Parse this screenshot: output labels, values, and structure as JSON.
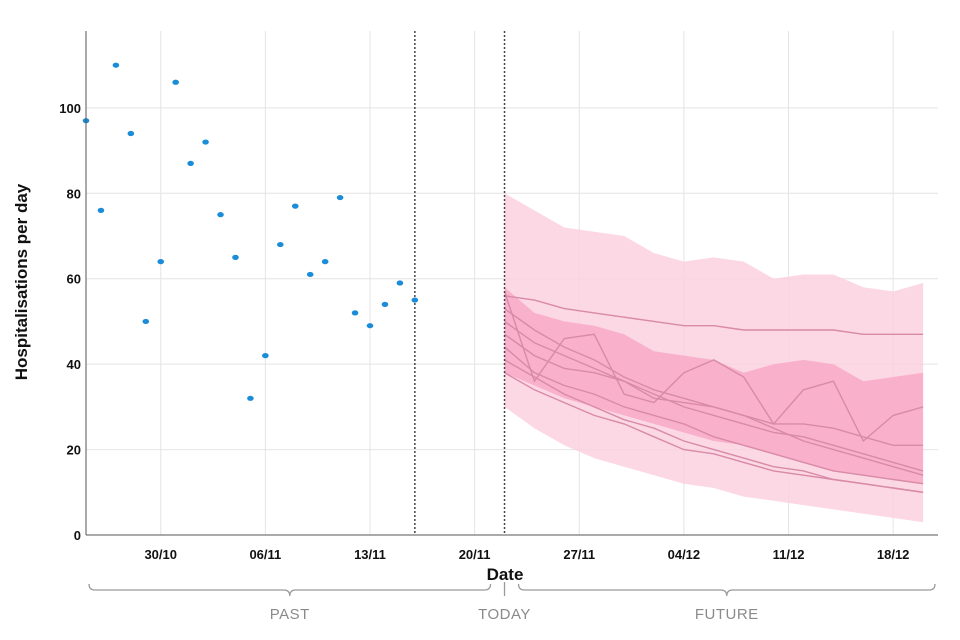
{
  "chart_data": {
    "type": "scatter",
    "xlabel": "Date",
    "ylabel": "Hospitalisations per day",
    "ylim": [
      0,
      118
    ],
    "xlim": [
      "2020-10-25",
      "2020-12-21"
    ],
    "grid": true,
    "x_ticks": [
      {
        "date": "2020-10-30",
        "label": "30/10"
      },
      {
        "date": "2020-11-06",
        "label": "06/11"
      },
      {
        "date": "2020-11-13",
        "label": "13/11"
      },
      {
        "date": "2020-11-20",
        "label": "20/11"
      },
      {
        "date": "2020-11-27",
        "label": "27/11"
      },
      {
        "date": "2020-12-04",
        "label": "04/12"
      },
      {
        "date": "2020-12-11",
        "label": "11/12"
      },
      {
        "date": "2020-12-18",
        "label": "18/12"
      }
    ],
    "y_ticks": [
      0,
      20,
      40,
      60,
      80,
      100
    ],
    "observed": {
      "x": [
        "2020-10-25",
        "2020-10-26",
        "2020-10-27",
        "2020-10-28",
        "2020-10-29",
        "2020-10-30",
        "2020-10-31",
        "2020-11-01",
        "2020-11-02",
        "2020-11-03",
        "2020-11-04",
        "2020-11-05",
        "2020-11-06",
        "2020-11-07",
        "2020-11-08",
        "2020-11-09",
        "2020-11-10",
        "2020-11-11",
        "2020-11-12",
        "2020-11-13",
        "2020-11-14",
        "2020-11-15",
        "2020-11-16"
      ],
      "y": [
        97,
        76,
        110,
        94,
        50,
        64,
        106,
        87,
        92,
        75,
        65,
        32,
        42,
        68,
        77,
        61,
        64,
        79,
        52,
        49,
        54,
        59,
        55
      ]
    },
    "reference_lines": [
      {
        "date": "2020-11-16"
      },
      {
        "date": "2020-11-22"
      }
    ],
    "projection_dates": [
      "2020-11-22",
      "2020-11-24",
      "2020-11-26",
      "2020-11-28",
      "2020-11-30",
      "2020-12-02",
      "2020-12-04",
      "2020-12-06",
      "2020-12-08",
      "2020-12-10",
      "2020-12-12",
      "2020-12-14",
      "2020-12-16",
      "2020-12-18",
      "2020-12-20"
    ],
    "outer_band": {
      "lower": [
        30,
        25,
        21,
        18,
        16,
        14,
        12,
        11,
        9,
        8,
        7,
        6,
        5,
        4,
        3
      ],
      "upper": [
        80,
        76,
        72,
        71,
        70,
        66,
        64,
        65,
        64,
        60,
        61,
        61,
        58,
        57,
        59
      ]
    },
    "inner_band": {
      "lower": [
        38,
        35,
        32,
        30,
        28,
        26,
        24,
        22,
        21,
        19,
        17,
        15,
        14,
        13,
        12
      ],
      "upper": [
        58,
        52,
        50,
        49,
        47,
        43,
        42,
        41,
        38,
        40,
        41,
        40,
        36,
        37,
        38
      ]
    },
    "projection_lines": [
      [
        56,
        55,
        53,
        52,
        51,
        50,
        49,
        49,
        48,
        48,
        48,
        48,
        47,
        47,
        47
      ],
      [
        53,
        48,
        44,
        41,
        37,
        34,
        32,
        30,
        28,
        26,
        26,
        25,
        23,
        21,
        21
      ],
      [
        50,
        45,
        42,
        39,
        36,
        33,
        30,
        28,
        26,
        24,
        23,
        21,
        19,
        17,
        15
      ],
      [
        47,
        42,
        39,
        38,
        36,
        32,
        31,
        30,
        28,
        25,
        22,
        20,
        18,
        16,
        14
      ],
      [
        44,
        38,
        35,
        33,
        30,
        28,
        26,
        23,
        21,
        19,
        17,
        15,
        14,
        13,
        12
      ],
      [
        41,
        37,
        33,
        30,
        27,
        25,
        22,
        20,
        18,
        16,
        15,
        13,
        12,
        11,
        10
      ],
      [
        38,
        34,
        31,
        28,
        26,
        23,
        20,
        19,
        17,
        15,
        14,
        13,
        12,
        11,
        10
      ],
      [
        57,
        36,
        46,
        47,
        33,
        31,
        38,
        41,
        37,
        26,
        34,
        36,
        22,
        28,
        30
      ]
    ],
    "timeline": {
      "past_label": "PAST",
      "today_label": "TODAY",
      "future_label": "FUTURE"
    },
    "colors": {
      "points": "#1a8cd8",
      "outer_band": "#fbd0df",
      "inner_band": "#f7a8c4",
      "line": "#d88aa6",
      "grid": "#e4e4e4",
      "bracket": "#9a9a9a"
    }
  }
}
